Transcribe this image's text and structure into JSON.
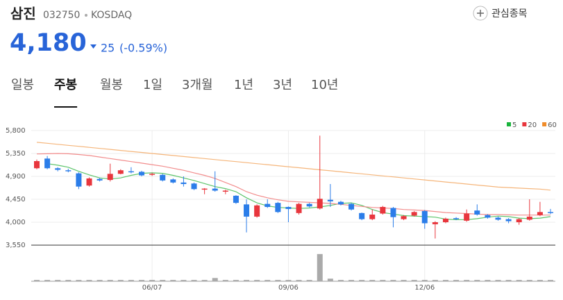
{
  "header": {
    "name": "삼진",
    "code": "032750",
    "market": "KOSDAQ",
    "watch": "관심종목",
    "price": "4,180",
    "change": "25",
    "change_percent": "(-0.59%)"
  },
  "tabs": [
    "일봉",
    "주봉",
    "월봉",
    "1일",
    "3개월",
    "1년",
    "3년",
    "10년"
  ],
  "selected_tab": 1,
  "chart_data": {
    "type": "candlestick",
    "categories": [
      null,
      null,
      null,
      null,
      null,
      null,
      null,
      null,
      null,
      null,
      null,
      "06/07",
      null,
      null,
      null,
      null,
      null,
      null,
      null,
      null,
      null,
      null,
      null,
      null,
      "09/06",
      null,
      null,
      null,
      null,
      null,
      null,
      null,
      null,
      null,
      null,
      null,
      null,
      "12/06",
      null,
      null,
      null,
      null,
      null,
      null,
      null,
      null,
      null,
      null,
      null,
      null
    ],
    "open": [
      5060,
      5250,
      5060,
      5020,
      4960,
      4720,
      4850,
      4830,
      4950,
      5000,
      4990,
      4930,
      4930,
      4840,
      4780,
      4760,
      4640,
      4660,
      4600,
      4520,
      4350,
      4110,
      4360,
      4380,
      4300,
      4180,
      4360,
      4270,
      4440,
      4400,
      4360,
      4180,
      4060,
      4170,
      4280,
      4060,
      4130,
      4220,
      3960,
      4000,
      4080,
      4030,
      4230,
      4140,
      4090,
      4060,
      4000,
      4050,
      4140,
      4200
    ],
    "high": [
      5230,
      5300,
      5080,
      5050,
      4980,
      4880,
      4870,
      5150,
      5040,
      5080,
      5010,
      4970,
      4950,
      4860,
      4900,
      4780,
      4670,
      5000,
      4640,
      4530,
      4450,
      4350,
      4450,
      4400,
      4310,
      4380,
      4380,
      5700,
      4750,
      4420,
      4380,
      4190,
      4250,
      4320,
      4300,
      4140,
      4220,
      4240,
      4020,
      4090,
      4100,
      4250,
      4350,
      4160,
      4110,
      4080,
      4080,
      4450,
      4400,
      4260
    ],
    "low": [
      5040,
      5040,
      5000,
      4980,
      4650,
      4700,
      4800,
      4800,
      4940,
      4960,
      4900,
      4910,
      4800,
      4760,
      4700,
      4630,
      4550,
      4600,
      4550,
      4360,
      3800,
      4090,
      4280,
      4180,
      4000,
      4150,
      4290,
      4250,
      4300,
      4330,
      4230,
      4040,
      4040,
      4150,
      3900,
      4040,
      4110,
      3870,
      3680,
      3980,
      4040,
      4010,
      4130,
      4070,
      4030,
      3980,
      3950,
      4030,
      4120,
      4160
    ],
    "close": [
      5200,
      5060,
      5030,
      5000,
      4700,
      4860,
      4820,
      4950,
      5020,
      4980,
      4920,
      4950,
      4820,
      4780,
      4750,
      4650,
      4660,
      4620,
      4620,
      4380,
      4110,
      4330,
      4300,
      4200,
      4260,
      4360,
      4310,
      4460,
      4410,
      4350,
      4250,
      4060,
      4150,
      4300,
      4100,
      4120,
      4200,
      3980,
      4000,
      4070,
      4060,
      4170,
      4150,
      4090,
      4050,
      4020,
      4060,
      4110,
      4200,
      4180
    ],
    "up_color": "#e8363d",
    "down_color": "#2b7de9",
    "moving_averages": [
      {
        "name": "5",
        "color": "#5cc46a",
        "legend_color": "#19b43c",
        "values": [
          null,
          5150,
          5120,
          5080,
          5000,
          4930,
          4870,
          4850,
          4870,
          4920,
          4960,
          4970,
          4960,
          4920,
          4870,
          4820,
          4760,
          4700,
          4660,
          4600,
          4480,
          4380,
          4320,
          4290,
          4280,
          4270,
          4280,
          4300,
          4330,
          4370,
          4380,
          4330,
          4250,
          4190,
          4160,
          4130,
          4120,
          4110,
          4100,
          4060,
          4050,
          4050,
          4070,
          4100,
          4120,
          4110,
          4080,
          4070,
          4080,
          4110
        ]
      },
      {
        "name": "20",
        "color": "#f28c8c",
        "legend_color": "#e8363d",
        "values": [
          5340,
          5345,
          5350,
          5345,
          5330,
          5310,
          5280,
          5250,
          5220,
          5190,
          5160,
          5130,
          5100,
          5060,
          5020,
          4970,
          4920,
          4860,
          4780,
          4700,
          4600,
          4530,
          4480,
          4440,
          4410,
          4400,
          4390,
          4380,
          4370,
          4350,
          4330,
          4310,
          4290,
          4280,
          4270,
          4250,
          4240,
          4230,
          4210,
          4190,
          4180,
          4170,
          4160,
          4150,
          4150,
          4145,
          4140,
          4140,
          4140,
          4140
        ]
      },
      {
        "name": "60",
        "color": "#f5b57a",
        "legend_color": "#f08c2a",
        "values": [
          5570,
          5550,
          5530,
          5510,
          5490,
          5470,
          5450,
          5430,
          5410,
          5390,
          5370,
          5350,
          5330,
          5310,
          5290,
          5270,
          5250,
          5230,
          5210,
          5190,
          5170,
          5150,
          5130,
          5110,
          5090,
          5070,
          5050,
          5030,
          5010,
          4990,
          4970,
          4950,
          4930,
          4910,
          4890,
          4870,
          4850,
          4830,
          4810,
          4790,
          4770,
          4750,
          4730,
          4710,
          4690,
          4680,
          4670,
          4660,
          4650,
          4630
        ]
      }
    ],
    "volume": [
      2,
      2,
      2,
      2,
      2,
      2,
      2,
      2,
      2,
      2,
      2,
      2,
      2,
      2,
      2,
      2,
      2,
      5,
      2,
      2,
      2,
      2,
      2,
      2,
      2,
      2,
      2,
      42,
      4,
      2,
      2,
      2,
      2,
      2,
      2,
      2,
      2,
      2,
      2,
      2,
      2,
      2,
      2,
      2,
      2,
      2,
      2,
      2,
      2,
      2
    ],
    "volume_color": "#aaaaaa",
    "volume_ylim": [
      0,
      45
    ],
    "ylim": [
      3550,
      5800
    ],
    "yticks": [
      {
        "value": 3550,
        "label": "3,550"
      },
      {
        "value": 4000,
        "label": "4,000"
      },
      {
        "value": 4450,
        "label": "4,450"
      },
      {
        "value": 4900,
        "label": "4,900"
      },
      {
        "value": 5350,
        "label": "5,350"
      },
      {
        "value": 5800,
        "label": "5,800"
      }
    ],
    "grid": true
  }
}
